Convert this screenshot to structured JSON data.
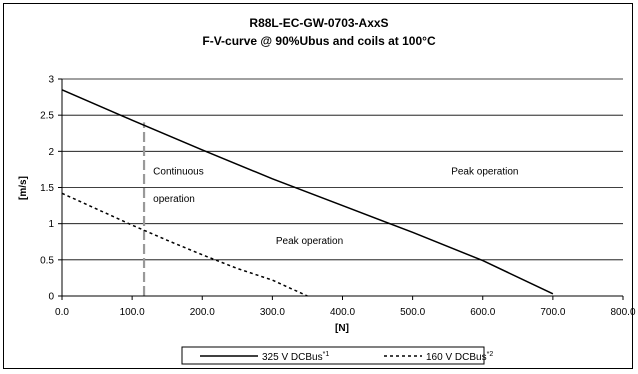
{
  "chart_data": {
    "type": "line",
    "title": "R88L-EC-GW-0703-AxxS",
    "subtitle": "F-V-curve @ 90%Ubus and coils at 100°C",
    "xlabel": "[N]",
    "ylabel": "[m/s]",
    "xlim": [
      0,
      800
    ],
    "ylim": [
      0,
      3
    ],
    "x_ticks": [
      "0.0",
      "100.0",
      "200.0",
      "300.0",
      "400.0",
      "500.0",
      "600.0",
      "700.0",
      "800.0"
    ],
    "y_ticks": [
      "0",
      "0.5",
      "1",
      "1.5",
      "2",
      "2.5",
      "3"
    ],
    "grid": "horizontal",
    "legend_position": "bottom",
    "series": [
      {
        "name": "325 V DCBus",
        "name_sup": "*1",
        "style": "solid",
        "color": "#000000",
        "x": [
          0,
          100,
          200,
          300,
          400,
          500,
          600,
          700
        ],
        "y": [
          2.85,
          2.43,
          2.02,
          1.62,
          1.25,
          0.88,
          0.49,
          0.03
        ]
      },
      {
        "name": "160 V DCBus",
        "name_sup": "*2",
        "style": "dashed",
        "color": "#000000",
        "x": [
          0,
          50,
          100,
          150,
          200,
          250,
          300,
          350
        ],
        "y": [
          1.42,
          1.2,
          0.98,
          0.77,
          0.57,
          0.38,
          0.22,
          0.0
        ]
      }
    ],
    "reference_line": {
      "x": 117,
      "y_from": 0,
      "y_to": 2.4,
      "color": "#999999",
      "style": "dashed"
    },
    "annotations": [
      {
        "text": "Continuous",
        "x": 130,
        "y": 1.68
      },
      {
        "text": "operation",
        "x": 130,
        "y": 1.3
      },
      {
        "text": "Peak operation",
        "x": 555,
        "y": 1.68
      },
      {
        "text": "Peak operation",
        "x": 305,
        "y": 0.72
      }
    ]
  }
}
